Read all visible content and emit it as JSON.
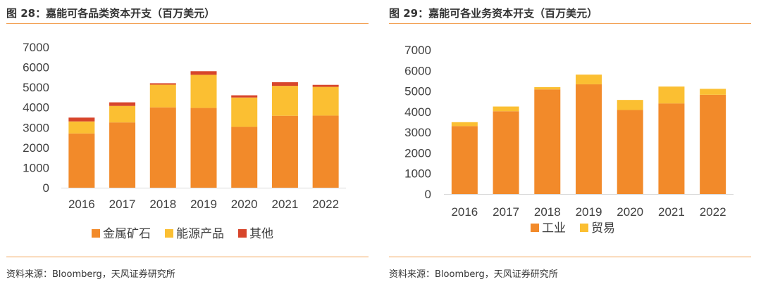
{
  "left": {
    "title": "图 28：嘉能可各品类资本开支（百万美元）",
    "source": "资料来源：Bloomberg，天风证券研究所",
    "chart_data": {
      "type": "bar",
      "stacked": true,
      "categories": [
        "2016",
        "2017",
        "2018",
        "2019",
        "2020",
        "2021",
        "2022"
      ],
      "series": [
        {
          "name": "金属矿石",
          "color": "#f28a2a",
          "values": [
            2700,
            3250,
            4000,
            3970,
            3030,
            3580,
            3590
          ]
        },
        {
          "name": "能源产品",
          "color": "#fbbf32",
          "values": [
            600,
            820,
            1130,
            1650,
            1460,
            1490,
            1430
          ]
        },
        {
          "name": "其他",
          "color": "#d7452b",
          "values": [
            190,
            180,
            70,
            180,
            110,
            180,
            100
          ]
        }
      ],
      "ylim": [
        0,
        7000
      ],
      "yticks": [
        "0",
        "1000",
        "2000",
        "3000",
        "4000",
        "5000",
        "6000",
        "7000"
      ],
      "legend_position": "bottom",
      "grid": false
    }
  },
  "right": {
    "title": "图 29：嘉能可各业务资本开支（百万美元）",
    "source": "资料来源：Bloomberg，天风证券研究所",
    "chart_data": {
      "type": "bar",
      "stacked": true,
      "categories": [
        "2016",
        "2017",
        "2018",
        "2019",
        "2020",
        "2021",
        "2022"
      ],
      "series": [
        {
          "name": "工业",
          "color": "#f28a2a",
          "values": [
            3300,
            4020,
            5080,
            5330,
            4080,
            4400,
            4820
          ]
        },
        {
          "name": "贸易",
          "color": "#fbbf32",
          "values": [
            190,
            230,
            110,
            470,
            490,
            820,
            290
          ]
        }
      ],
      "ylim": [
        0,
        7000
      ],
      "yticks": [
        "0",
        "1000",
        "2000",
        "3000",
        "4000",
        "5000",
        "6000",
        "7000"
      ],
      "legend_position": "bottom",
      "grid": false
    }
  }
}
